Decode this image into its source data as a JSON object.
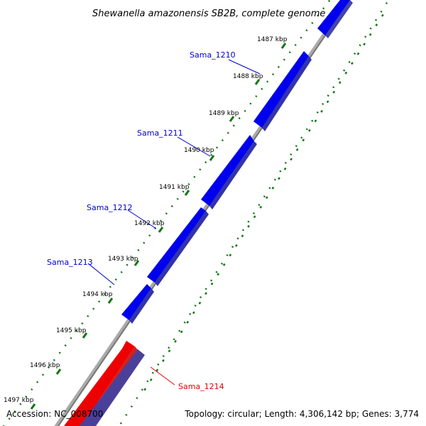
{
  "title": "Shewanella amazonensis SB2B, complete genome",
  "footer": {
    "accession": "Accession: NC_008700",
    "summary": "Topology: circular; Length: 4,306,142 bp; Genes: 3,774"
  },
  "ticks": [
    "1487 kbp",
    "1488 kbp",
    "1489 kbp",
    "1490 kbp",
    "1491 kbp",
    "1492 kbp",
    "1493 kbp",
    "1494 kbp",
    "1495 kbp",
    "1496 kbp",
    "1497 kbp"
  ],
  "genes": [
    {
      "name": "Sama_1210",
      "strand": "forward",
      "color": "#0000cc"
    },
    {
      "name": "Sama_1211",
      "strand": "forward",
      "color": "#0000cc"
    },
    {
      "name": "Sama_1212",
      "strand": "forward",
      "color": "#0000cc"
    },
    {
      "name": "Sama_1213",
      "strand": "forward",
      "color": "#0000cc"
    },
    {
      "name": "Sama_1214",
      "strand": "reverse",
      "color": "#ee0000"
    }
  ],
  "colors": {
    "forward_gene": "#0000ee",
    "reverse_gene": "#ee0000",
    "forward_label": "#0000cc",
    "reverse_label": "#dd0000",
    "backbone": "#888888",
    "tick_dots": "#117711",
    "reverse_track": "#4a4099"
  }
}
